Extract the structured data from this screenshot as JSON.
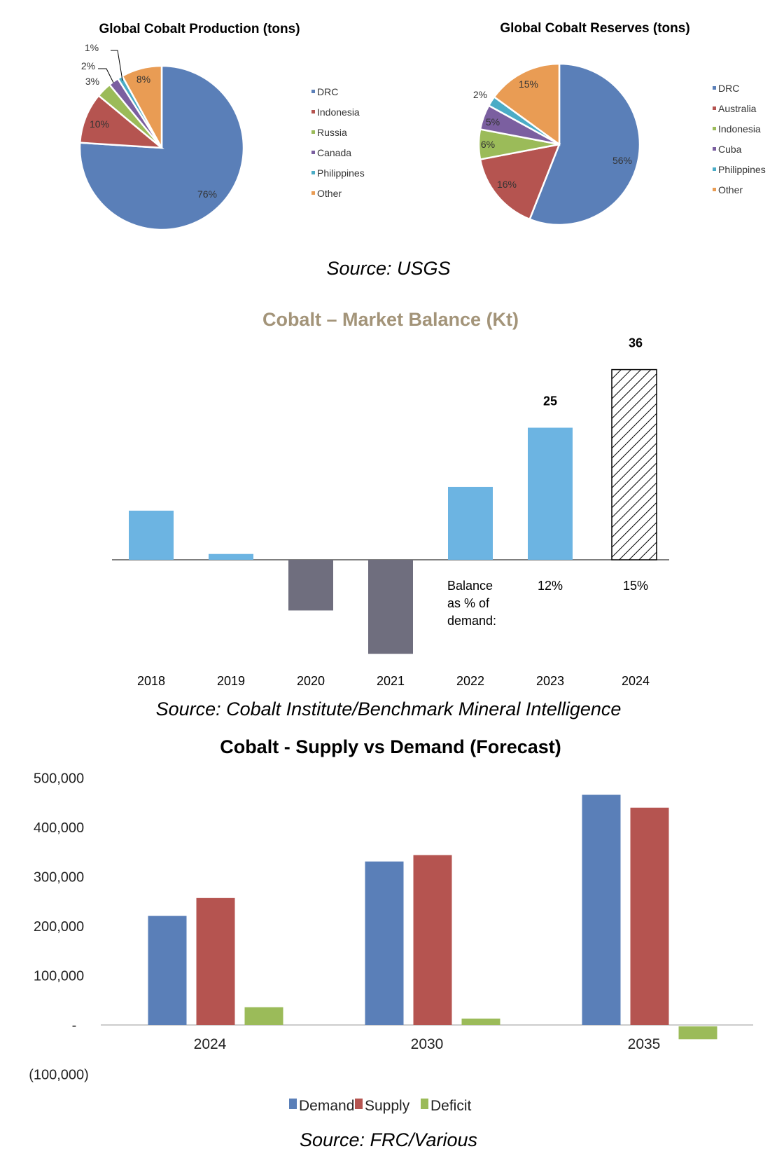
{
  "chart_data": [
    {
      "type": "pie",
      "title": "Global Cobalt Production (tons)",
      "labels": [
        "DRC",
        "Indonesia",
        "Russia",
        "Canada",
        "Philippines",
        "Other"
      ],
      "values": [
        76,
        10,
        3,
        2,
        1,
        8
      ],
      "value_labels": [
        "76%",
        "10%",
        "3%",
        "2%",
        "1%",
        "8%"
      ],
      "colors": [
        "#5a7fb8",
        "#b55450",
        "#9bbb59",
        "#7b5fa0",
        "#4bacc6",
        "#e99c54"
      ],
      "legend": "right"
    },
    {
      "type": "pie",
      "title": "Global Cobalt Reserves (tons)",
      "labels": [
        "DRC",
        "Australia",
        "Indonesia",
        "Cuba",
        "Philippines",
        "Other"
      ],
      "values": [
        56,
        16,
        6,
        5,
        2,
        15
      ],
      "value_labels": [
        "56%",
        "16%",
        "6%",
        "5%",
        "2%",
        "15%"
      ],
      "colors": [
        "#5a7fb8",
        "#b55450",
        "#9bbb59",
        "#7b5fa0",
        "#4bacc6",
        "#e99c54"
      ],
      "legend": "right"
    },
    {
      "type": "bar",
      "title": "Cobalt – Market Balance (Kt)",
      "categories": [
        "2018",
        "2019",
        "2020",
        "2021",
        "2022",
        "2023",
        "2024"
      ],
      "values": [
        9.3,
        1.1,
        -9.6,
        -17.8,
        13.8,
        25,
        36
      ],
      "data_labels": {
        "2023": "25",
        "2024": "36"
      },
      "forecast_hatched": [
        "2024"
      ],
      "annotation": {
        "label_lines": [
          "Balance",
          "as % of",
          "demand:"
        ],
        "2023": "12%",
        "2024": "15%"
      },
      "colors": {
        "positive": "#6cb4e2",
        "negative": "#6f6e7e",
        "title": "#a39479"
      },
      "xlabel": "",
      "ylabel": ""
    },
    {
      "type": "bar",
      "title": "Cobalt - Supply vs Demand (Forecast)",
      "categories": [
        "2024",
        "2030",
        "2035"
      ],
      "series": [
        {
          "name": "Demand",
          "values": [
            221000,
            331000,
            466000
          ],
          "color": "#5a7fb8"
        },
        {
          "name": "Supply",
          "values": [
            257000,
            344000,
            440000
          ],
          "color": "#b55450"
        },
        {
          "name": "Deficit",
          "values": [
            36000,
            13000,
            -26000
          ],
          "color": "#9bbb59"
        }
      ],
      "ylim": [
        -100000,
        500000
      ],
      "yticks": [
        500000,
        400000,
        300000,
        200000,
        100000,
        0,
        -100000
      ],
      "ytick_labels": [
        "500,000",
        "400,000",
        "300,000",
        "200,000",
        "100,000",
        "-",
        "(100,000)"
      ],
      "legend": "bottom"
    }
  ],
  "sources": [
    "Source: USGS",
    "Source: Cobalt Institute/Benchmark Mineral Intelligence",
    "Source: FRC/Various"
  ]
}
